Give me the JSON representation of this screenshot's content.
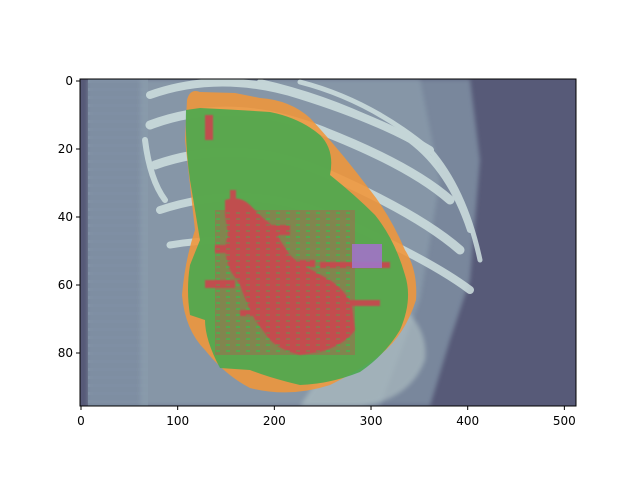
{
  "figure": {
    "image_description_colors": {
      "background": "#575a78",
      "scan_tint": "#8fa4b0",
      "bone": "#c9dcdc",
      "orange_region": "#f0963a",
      "green_region": "#4aa94f",
      "red_region": "#c9474f",
      "purple_region": "#a074c4"
    },
    "x_axis": {
      "ticks": [
        "0",
        "100",
        "200",
        "300",
        "400",
        "500"
      ],
      "range": [
        0,
        511
      ]
    },
    "y_axis": {
      "ticks": [
        "0",
        "20",
        "40",
        "60",
        "80"
      ],
      "range": [
        95,
        0
      ]
    }
  }
}
